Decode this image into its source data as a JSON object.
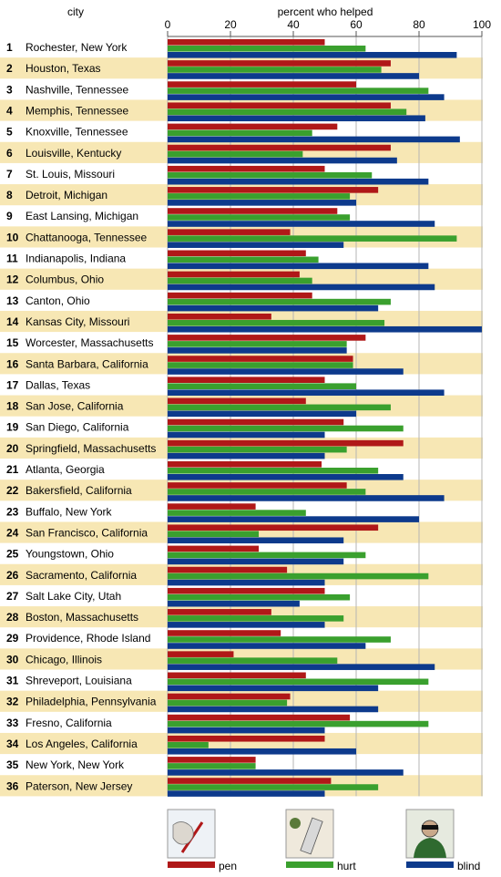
{
  "chart_data": {
    "type": "bar",
    "orientation": "horizontal",
    "category_header": "city",
    "xlabel": "percent who helped",
    "xlim": [
      0,
      100
    ],
    "ticks": [
      "0",
      "20",
      "40",
      "60",
      "80",
      "100"
    ],
    "grid": true,
    "legend_placement": "bottom",
    "series_colors": {
      "pen": "#b01818",
      "hurt": "#3aa02e",
      "blind": "#0d3a8c"
    },
    "row_band_color": "#f7e7b4",
    "categories": [
      {
        "rank": "1",
        "city": "Rochester, New York",
        "pen": 50,
        "hurt": 63,
        "blind": 92
      },
      {
        "rank": "2",
        "city": "Houston, Texas",
        "pen": 71,
        "hurt": 68,
        "blind": 80
      },
      {
        "rank": "3",
        "city": "Nashville, Tennessee",
        "pen": 60,
        "hurt": 83,
        "blind": 88
      },
      {
        "rank": "4",
        "city": "Memphis, Tennessee",
        "pen": 71,
        "hurt": 76,
        "blind": 82
      },
      {
        "rank": "5",
        "city": "Knoxville, Tennessee",
        "pen": 54,
        "hurt": 46,
        "blind": 93
      },
      {
        "rank": "6",
        "city": "Louisville, Kentucky",
        "pen": 71,
        "hurt": 43,
        "blind": 73
      },
      {
        "rank": "7",
        "city": "St. Louis, Missouri",
        "pen": 50,
        "hurt": 65,
        "blind": 83
      },
      {
        "rank": "8",
        "city": "Detroit, Michigan",
        "pen": 67,
        "hurt": 58,
        "blind": 60
      },
      {
        "rank": "9",
        "city": "East Lansing, Michigan",
        "pen": 54,
        "hurt": 58,
        "blind": 85
      },
      {
        "rank": "10",
        "city": "Chattanooga, Tennessee",
        "pen": 39,
        "hurt": 92,
        "blind": 56
      },
      {
        "rank": "11",
        "city": "Indianapolis, Indiana",
        "pen": 44,
        "hurt": 48,
        "blind": 83
      },
      {
        "rank": "12",
        "city": "Columbus, Ohio",
        "pen": 42,
        "hurt": 46,
        "blind": 85
      },
      {
        "rank": "13",
        "city": "Canton, Ohio",
        "pen": 46,
        "hurt": 71,
        "blind": 67
      },
      {
        "rank": "14",
        "city": "Kansas City, Missouri",
        "pen": 33,
        "hurt": 69,
        "blind": 100
      },
      {
        "rank": "15",
        "city": "Worcester, Massachusetts",
        "pen": 63,
        "hurt": 57,
        "blind": 57
      },
      {
        "rank": "16",
        "city": "Santa Barbara, California",
        "pen": 59,
        "hurt": 59,
        "blind": 75
      },
      {
        "rank": "17",
        "city": "Dallas, Texas",
        "pen": 50,
        "hurt": 60,
        "blind": 88
      },
      {
        "rank": "18",
        "city": "San Jose, California",
        "pen": 44,
        "hurt": 71,
        "blind": 60
      },
      {
        "rank": "19",
        "city": "San Diego, California",
        "pen": 56,
        "hurt": 75,
        "blind": 50
      },
      {
        "rank": "20",
        "city": "Springfield, Massachusetts",
        "pen": 75,
        "hurt": 57,
        "blind": 50
      },
      {
        "rank": "21",
        "city": "Atlanta, Georgia",
        "pen": 49,
        "hurt": 67,
        "blind": 75
      },
      {
        "rank": "22",
        "city": "Bakersfield, California",
        "pen": 57,
        "hurt": 63,
        "blind": 88
      },
      {
        "rank": "23",
        "city": "Buffalo, New York",
        "pen": 28,
        "hurt": 44,
        "blind": 80
      },
      {
        "rank": "24",
        "city": "San Francisco, California",
        "pen": 67,
        "hurt": 29,
        "blind": 56
      },
      {
        "rank": "25",
        "city": "Youngstown, Ohio",
        "pen": 29,
        "hurt": 63,
        "blind": 56
      },
      {
        "rank": "26",
        "city": "Sacramento, California",
        "pen": 38,
        "hurt": 83,
        "blind": 50
      },
      {
        "rank": "27",
        "city": "Salt Lake City, Utah",
        "pen": 50,
        "hurt": 58,
        "blind": 42
      },
      {
        "rank": "28",
        "city": "Boston, Massachusetts",
        "pen": 33,
        "hurt": 56,
        "blind": 50
      },
      {
        "rank": "29",
        "city": "Providence, Rhode Island",
        "pen": 36,
        "hurt": 71,
        "blind": 63
      },
      {
        "rank": "30",
        "city": "Chicago, Illinois",
        "pen": 21,
        "hurt": 54,
        "blind": 85
      },
      {
        "rank": "31",
        "city": "Shreveport, Louisiana",
        "pen": 44,
        "hurt": 83,
        "blind": 67
      },
      {
        "rank": "32",
        "city": "Philadelphia, Pennsylvania",
        "pen": 39,
        "hurt": 38,
        "blind": 67
      },
      {
        "rank": "33",
        "city": "Fresno, California",
        "pen": 58,
        "hurt": 83,
        "blind": 50
      },
      {
        "rank": "34",
        "city": "Los Angeles, California",
        "pen": 50,
        "hurt": 13,
        "blind": 60
      },
      {
        "rank": "35",
        "city": "New York, New York",
        "pen": 28,
        "hurt": 28,
        "blind": 75
      },
      {
        "rank": "36",
        "city": "Paterson, New Jersey",
        "pen": 52,
        "hurt": 67,
        "blind": 50
      }
    ],
    "series": [
      {
        "name": "pen",
        "key": "pen"
      },
      {
        "name": "hurt",
        "key": "hurt"
      },
      {
        "name": "blind",
        "key": "blind"
      }
    ]
  }
}
